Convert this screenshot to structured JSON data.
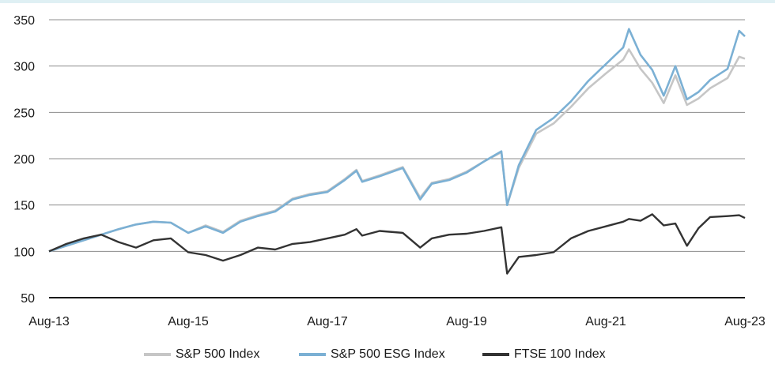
{
  "chart_data": {
    "type": "line",
    "title": "",
    "xlabel": "",
    "ylabel": "",
    "ylim": [
      50,
      350
    ],
    "yticks": [
      50,
      100,
      150,
      200,
      250,
      300,
      350
    ],
    "x_range": [
      "2013-08",
      "2023-08"
    ],
    "xtick_labels": [
      "Aug-13",
      "Aug-15",
      "Aug-17",
      "Aug-19",
      "Aug-21",
      "Aug-23"
    ],
    "grid": "horizontal",
    "legend_position": "bottom",
    "series": [
      {
        "name": "S&P 500 Index",
        "color": "#c6c6c6",
        "x": [
          "2013-08",
          "2013-11",
          "2014-02",
          "2014-05",
          "2014-08",
          "2014-11",
          "2015-02",
          "2015-05",
          "2015-08",
          "2015-11",
          "2016-02",
          "2016-05",
          "2016-08",
          "2016-11",
          "2017-02",
          "2017-05",
          "2017-08",
          "2017-11",
          "2018-01",
          "2018-02",
          "2018-05",
          "2018-09",
          "2018-12",
          "2019-02",
          "2019-05",
          "2019-08",
          "2019-11",
          "2020-02",
          "2020-03",
          "2020-05",
          "2020-08",
          "2020-11",
          "2021-02",
          "2021-05",
          "2021-08",
          "2021-11",
          "2021-12",
          "2022-02",
          "2022-04",
          "2022-06",
          "2022-08",
          "2022-10",
          "2022-12",
          "2023-02",
          "2023-05",
          "2023-07",
          "2023-08"
        ],
        "values": [
          100,
          106,
          112,
          118,
          124,
          129,
          132,
          131,
          120,
          128,
          121,
          133,
          139,
          144,
          157,
          162,
          165,
          178,
          188,
          176,
          182,
          191,
          158,
          174,
          178,
          186,
          197,
          207,
          150,
          190,
          227,
          238,
          256,
          276,
          292,
          307,
          318,
          297,
          282,
          260,
          290,
          258,
          265,
          276,
          287,
          310,
          308
        ]
      },
      {
        "name": "S&P 500 ESG Index",
        "color": "#7bb0d4",
        "x": [
          "2013-08",
          "2013-11",
          "2014-02",
          "2014-05",
          "2014-08",
          "2014-11",
          "2015-02",
          "2015-05",
          "2015-08",
          "2015-11",
          "2016-02",
          "2016-05",
          "2016-08",
          "2016-11",
          "2017-02",
          "2017-05",
          "2017-08",
          "2017-11",
          "2018-01",
          "2018-02",
          "2018-05",
          "2018-09",
          "2018-12",
          "2019-02",
          "2019-05",
          "2019-08",
          "2019-11",
          "2020-02",
          "2020-03",
          "2020-05",
          "2020-08",
          "2020-11",
          "2021-02",
          "2021-05",
          "2021-08",
          "2021-11",
          "2021-12",
          "2022-02",
          "2022-04",
          "2022-06",
          "2022-08",
          "2022-10",
          "2022-12",
          "2023-02",
          "2023-05",
          "2023-07",
          "2023-08"
        ],
        "values": [
          100,
          106,
          112,
          118,
          124,
          129,
          132,
          131,
          120,
          127,
          120,
          132,
          138,
          143,
          156,
          161,
          164,
          177,
          187,
          175,
          181,
          190,
          156,
          173,
          177,
          185,
          197,
          208,
          150,
          193,
          231,
          244,
          262,
          284,
          302,
          320,
          340,
          312,
          296,
          268,
          300,
          264,
          272,
          285,
          297,
          338,
          332
        ]
      },
      {
        "name": "FTSE 100 Index",
        "color": "#333333",
        "x": [
          "2013-08",
          "2013-11",
          "2014-02",
          "2014-05",
          "2014-08",
          "2014-11",
          "2015-02",
          "2015-05",
          "2015-08",
          "2015-11",
          "2016-02",
          "2016-05",
          "2016-08",
          "2016-11",
          "2017-02",
          "2017-05",
          "2017-08",
          "2017-11",
          "2018-01",
          "2018-02",
          "2018-05",
          "2018-09",
          "2018-12",
          "2019-02",
          "2019-05",
          "2019-08",
          "2019-11",
          "2020-02",
          "2020-03",
          "2020-05",
          "2020-08",
          "2020-11",
          "2021-02",
          "2021-05",
          "2021-08",
          "2021-11",
          "2021-12",
          "2022-02",
          "2022-04",
          "2022-06",
          "2022-08",
          "2022-10",
          "2022-12",
          "2023-02",
          "2023-05",
          "2023-07",
          "2023-08"
        ],
        "values": [
          100,
          108,
          114,
          118,
          110,
          104,
          112,
          114,
          99,
          96,
          90,
          96,
          104,
          102,
          108,
          110,
          114,
          118,
          124,
          117,
          122,
          120,
          104,
          114,
          118,
          119,
          122,
          126,
          76,
          94,
          96,
          99,
          114,
          122,
          127,
          132,
          135,
          133,
          140,
          128,
          130,
          106,
          125,
          137,
          138,
          139,
          136
        ]
      }
    ]
  }
}
